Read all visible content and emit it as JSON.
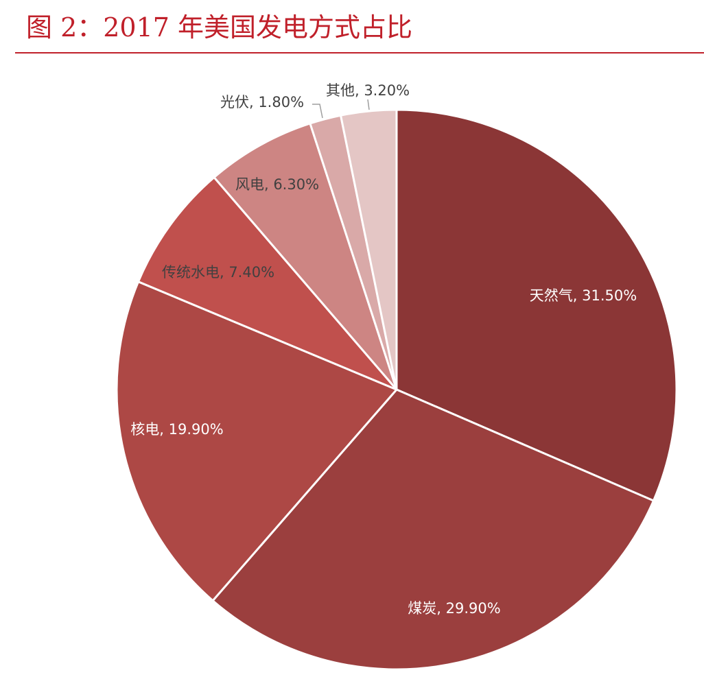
{
  "figure": {
    "title": "图 2：2017 年美国发电方式占比"
  },
  "chart_data": {
    "type": "pie",
    "title": "",
    "start": "12 o'clock",
    "direction": "clockwise",
    "slices": [
      {
        "name": "天然气",
        "value": 31.5,
        "label": "天然气, 31.50%",
        "color": "#8b3636",
        "text_color": "#ffffff",
        "label_position": "inside"
      },
      {
        "name": "煤炭",
        "value": 29.9,
        "label": "煤炭, 29.90%",
        "color": "#9b3f3e",
        "text_color": "#ffffff",
        "label_position": "inside"
      },
      {
        "name": "核电",
        "value": 19.9,
        "label": "核电, 19.90%",
        "color": "#ad4845",
        "text_color": "#ffffff",
        "label_position": "inside"
      },
      {
        "name": "传统水电",
        "value": 7.4,
        "label": "传统水电, 7.40%",
        "color": "#c0504d",
        "text_color": "#404040",
        "label_position": "inside"
      },
      {
        "name": "风电",
        "value": 6.3,
        "label": "风电, 6.30%",
        "color": "#cd8583",
        "text_color": "#404040",
        "label_position": "inside"
      },
      {
        "name": "光伏",
        "value": 1.8,
        "label": "光伏, 1.80%",
        "color": "#d9a9a8",
        "text_color": "#404040",
        "label_position": "outside"
      },
      {
        "name": "其他",
        "value": 3.2,
        "label": "其他, 3.20%",
        "color": "#e4c6c5",
        "text_color": "#404040",
        "label_position": "outside"
      }
    ]
  }
}
